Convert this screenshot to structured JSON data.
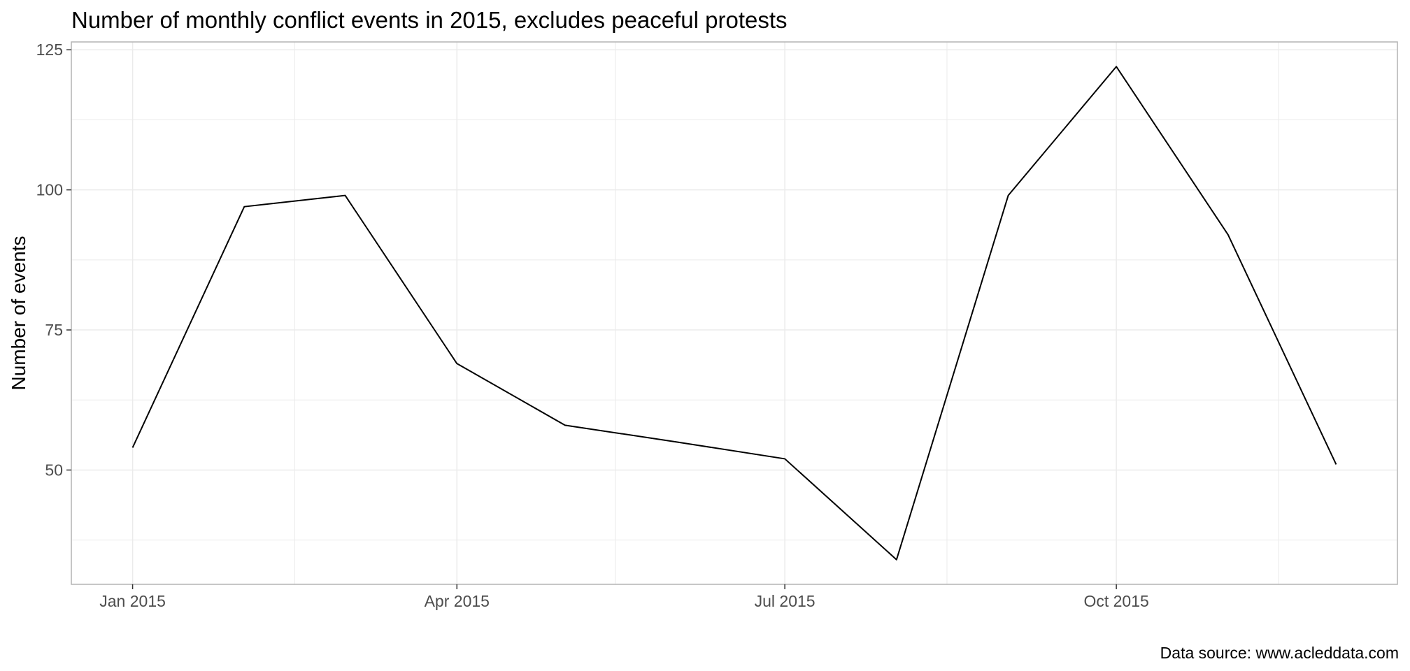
{
  "chart_data": {
    "type": "line",
    "title": "Number of monthly conflict events in 2015, excludes peaceful protests",
    "xlabel": "",
    "ylabel": "Number of events",
    "caption": "Data source: www.acleddata.com",
    "x": [
      "2015-01",
      "2015-02",
      "2015-03",
      "2015-04",
      "2015-05",
      "2015-06",
      "2015-07",
      "2015-08",
      "2015-09",
      "2015-10",
      "2015-11",
      "2015-12"
    ],
    "values": [
      54,
      97,
      99,
      69,
      58,
      55,
      52,
      34,
      99,
      122,
      92,
      51
    ],
    "x_tick_labels": [
      "Jan 2015",
      "Apr 2015",
      "Jul 2015",
      "Oct 2015"
    ],
    "x_tick_positions": [
      "2015-01",
      "2015-04",
      "2015-07",
      "2015-10"
    ],
    "x_minor_gridlines": [
      "2015-02-15",
      "2015-05-15",
      "2015-08-15",
      "2015-11-15"
    ],
    "y_ticks": [
      50,
      75,
      100,
      125
    ],
    "y_tick_labels": [
      "50",
      "75",
      "100",
      "125"
    ],
    "y_minor_gridlines": [
      37.5,
      62.5,
      87.5,
      112.5
    ],
    "xlim": [
      "2014-12-15",
      "2015-12-18"
    ],
    "ylim": [
      29.6,
      126.4
    ],
    "grid": true,
    "colors": {
      "line": "#000000",
      "grid": "#ebebeb",
      "panel_border": "#b3b3b3",
      "tick_text": "#4d4d4d"
    }
  }
}
